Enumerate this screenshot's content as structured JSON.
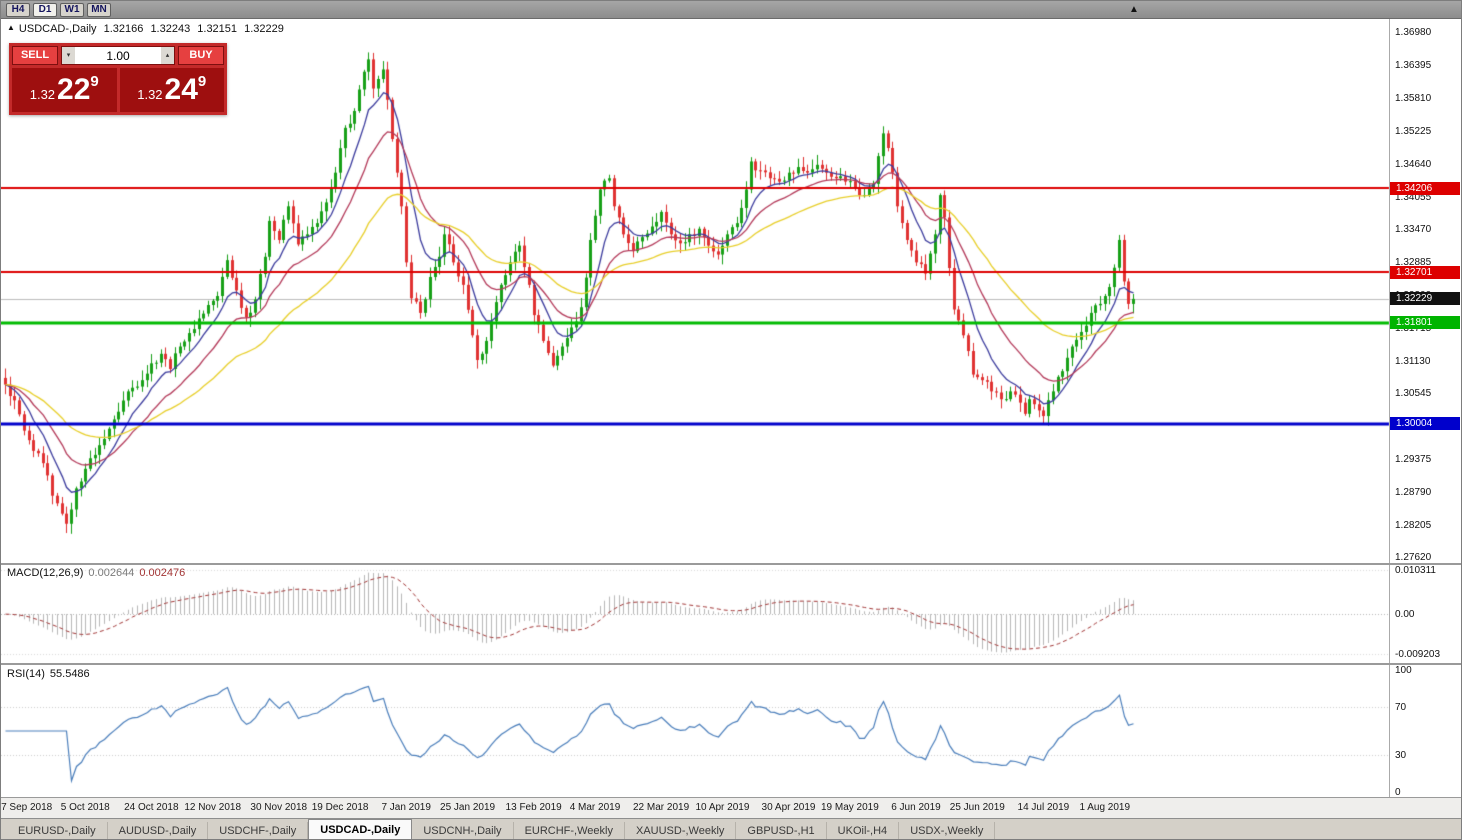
{
  "toolbar": {
    "timeframes": [
      "H4",
      "D1",
      "W1",
      "MN"
    ],
    "active_timeframe": "D1",
    "collapse_icon": "▲"
  },
  "chart_header": {
    "symbol_arrow": "▲",
    "title": "USDCAD-,Daily",
    "open": "1.32166",
    "high": "1.32243",
    "low": "1.32151",
    "close": "1.32229"
  },
  "trade_panel": {
    "sell_label": "SELL",
    "buy_label": "BUY",
    "volume": "1.00",
    "spinner_up": "▴",
    "spinner_down": "▾",
    "sell_price": {
      "prefix": "1.32",
      "big": "22",
      "sup": "9"
    },
    "buy_price": {
      "prefix": "1.32",
      "big": "24",
      "sup": "9"
    }
  },
  "price_axis": {
    "labels": [
      "1.36980",
      "1.36395",
      "1.35810",
      "1.35225",
      "1.34640",
      "1.34055",
      "1.33470",
      "1.32885",
      "1.32300",
      "1.31715",
      "1.31130",
      "1.30545",
      "1.29960",
      "1.29375",
      "1.28790",
      "1.28205",
      "1.27620"
    ],
    "tags": [
      {
        "label": "1.34206",
        "price": 1.34206,
        "color": "#dd0000"
      },
      {
        "label": "1.32701",
        "price": 1.32701,
        "color": "#dd0000"
      },
      {
        "label": "1.32229",
        "price": 1.32229,
        "color": "#111111"
      },
      {
        "label": "1.31801",
        "price": 1.31801,
        "color": "#00b400"
      },
      {
        "label": "1.30004",
        "price": 1.30004,
        "color": "#0000cc"
      }
    ]
  },
  "macd_panel": {
    "label": "MACD(12,26,9)",
    "value_main": "0.002644",
    "value_signal": "0.002476",
    "axis_labels": [
      "0.010311",
      "0.00",
      "-0.009203"
    ]
  },
  "rsi_panel": {
    "label": "RSI(14)",
    "value": "55.5486",
    "axis_labels": [
      "100",
      "70",
      "30",
      "0"
    ],
    "level_lines": [
      70,
      30
    ]
  },
  "date_axis": {
    "labels": [
      "17 Sep 2018",
      "5 Oct 2018",
      "24 Oct 2018",
      "12 Nov 2018",
      "30 Nov 2018",
      "19 Dec 2018",
      "7 Jan 2019",
      "25 Jan 2019",
      "13 Feb 2019",
      "4 Mar 2019",
      "22 Mar 2019",
      "10 Apr 2019",
      "30 Apr 2019",
      "19 May 2019",
      "6 Jun 2019",
      "25 Jun 2019",
      "14 Jul 2019",
      "1 Aug 2019"
    ],
    "bar_indices": [
      4,
      17,
      31,
      44,
      58,
      71,
      85,
      98,
      112,
      125,
      139,
      152,
      166,
      179,
      193,
      206,
      220,
      233
    ]
  },
  "tabs": {
    "active_index": 3,
    "items": [
      "EURUSD-,Daily",
      "AUDUSD-,Daily",
      "USDCHF-,Daily",
      "USDCAD-,Daily",
      "USDCNH-,Daily",
      "EURCHF-,Weekly",
      "XAUUSD-,Weekly",
      "GBPUSD-,H1",
      "UKOil-,H4",
      "USDX-,Weekly"
    ]
  },
  "chart_data": {
    "type": "candlestick",
    "symbol": "USDCAD-",
    "timeframe": "Daily",
    "last_ohlc": {
      "open": 1.32166,
      "high": 1.32243,
      "low": 1.32151,
      "close": 1.32229
    },
    "price_range": {
      "top": 1.3722,
      "bottom": 1.2752
    },
    "bar_count": 240,
    "wiggle": 0.0016,
    "close_anchors": [
      [
        0,
        1.307
      ],
      [
        2,
        1.3042
      ],
      [
        4,
        1.2988
      ],
      [
        6,
        1.2952
      ],
      [
        8,
        1.293
      ],
      [
        10,
        1.2872
      ],
      [
        12,
        1.284
      ],
      [
        13,
        1.2822
      ],
      [
        15,
        1.2885
      ],
      [
        17,
        1.292
      ],
      [
        20,
        1.2962
      ],
      [
        23,
        1.3008
      ],
      [
        26,
        1.3058
      ],
      [
        29,
        1.3078
      ],
      [
        31,
        1.3108
      ],
      [
        33,
        1.3125
      ],
      [
        35,
        1.3098
      ],
      [
        37,
        1.3138
      ],
      [
        39,
        1.3162
      ],
      [
        41,
        1.3188
      ],
      [
        43,
        1.3212
      ],
      [
        45,
        1.3228
      ],
      [
        47,
        1.3292
      ],
      [
        49,
        1.3238
      ],
      [
        51,
        1.319
      ],
      [
        53,
        1.3222
      ],
      [
        55,
        1.3298
      ],
      [
        56,
        1.3362
      ],
      [
        58,
        1.3328
      ],
      [
        60,
        1.3388
      ],
      [
        62,
        1.332
      ],
      [
        64,
        1.3338
      ],
      [
        66,
        1.3358
      ],
      [
        68,
        1.3395
      ],
      [
        70,
        1.3448
      ],
      [
        72,
        1.3528
      ],
      [
        74,
        1.3558
      ],
      [
        76,
        1.3628
      ],
      [
        77,
        1.365
      ],
      [
        78,
        1.3598
      ],
      [
        79,
        1.3615
      ],
      [
        80,
        1.3632
      ],
      [
        81,
        1.3578
      ],
      [
        82,
        1.3508
      ],
      [
        83,
        1.3448
      ],
      [
        84,
        1.3388
      ],
      [
        85,
        1.3288
      ],
      [
        86,
        1.3224
      ],
      [
        88,
        1.3198
      ],
      [
        90,
        1.3262
      ],
      [
        92,
        1.3298
      ],
      [
        93,
        1.3338
      ],
      [
        95,
        1.3288
      ],
      [
        97,
        1.3248
      ],
      [
        99,
        1.3158
      ],
      [
        100,
        1.3114
      ],
      [
        102,
        1.3148
      ],
      [
        103,
        1.3183
      ],
      [
        105,
        1.3248
      ],
      [
        107,
        1.3288
      ],
      [
        109,
        1.3318
      ],
      [
        111,
        1.3248
      ],
      [
        112,
        1.3194
      ],
      [
        114,
        1.3148
      ],
      [
        116,
        1.3104
      ],
      [
        118,
        1.3138
      ],
      [
        120,
        1.3172
      ],
      [
        122,
        1.3208
      ],
      [
        124,
        1.3328
      ],
      [
        126,
        1.3418
      ],
      [
        128,
        1.3438
      ],
      [
        129,
        1.3388
      ],
      [
        131,
        1.3338
      ],
      [
        133,
        1.3308
      ],
      [
        135,
        1.3333
      ],
      [
        137,
        1.3352
      ],
      [
        139,
        1.3378
      ],
      [
        141,
        1.3338
      ],
      [
        143,
        1.3322
      ],
      [
        145,
        1.3338
      ],
      [
        147,
        1.3348
      ],
      [
        149,
        1.3318
      ],
      [
        151,
        1.3302
      ],
      [
        153,
        1.3338
      ],
      [
        155,
        1.3358
      ],
      [
        157,
        1.3418
      ],
      [
        158,
        1.3468
      ],
      [
        160,
        1.3452
      ],
      [
        162,
        1.3438
      ],
      [
        164,
        1.3432
      ],
      [
        166,
        1.3448
      ],
      [
        168,
        1.3458
      ],
      [
        170,
        1.3448
      ],
      [
        172,
        1.3462
      ],
      [
        174,
        1.3448
      ],
      [
        176,
        1.3438
      ],
      [
        178,
        1.3432
      ],
      [
        180,
        1.3422
      ],
      [
        182,
        1.3408
      ],
      [
        184,
        1.3428
      ],
      [
        186,
        1.3518
      ],
      [
        187,
        1.3492
      ],
      [
        188,
        1.3448
      ],
      [
        189,
        1.3388
      ],
      [
        191,
        1.3328
      ],
      [
        193,
        1.3288
      ],
      [
        195,
        1.3268
      ],
      [
        197,
        1.3338
      ],
      [
        198,
        1.3408
      ],
      [
        199,
        1.3368
      ],
      [
        200,
        1.3278
      ],
      [
        201,
        1.3204
      ],
      [
        203,
        1.3158
      ],
      [
        205,
        1.3088
      ],
      [
        207,
        1.3078
      ],
      [
        209,
        1.3058
      ],
      [
        211,
        1.3044
      ],
      [
        213,
        1.3058
      ],
      [
        215,
        1.3038
      ],
      [
        216,
        1.3018
      ],
      [
        217,
        1.3044
      ],
      [
        219,
        1.3024
      ],
      [
        220,
        1.3014
      ],
      [
        222,
        1.3058
      ],
      [
        223,
        1.3084
      ],
      [
        225,
        1.3118
      ],
      [
        226,
        1.3138
      ],
      [
        228,
        1.3164
      ],
      [
        230,
        1.3198
      ],
      [
        232,
        1.3214
      ],
      [
        233,
        1.3228
      ],
      [
        234,
        1.3244
      ],
      [
        236,
        1.3328
      ],
      [
        237,
        1.3254
      ],
      [
        238,
        1.3214
      ],
      [
        239,
        1.32229
      ]
    ],
    "moving_averages": [
      {
        "period": 8,
        "color": "#3c3c9e"
      },
      {
        "period": 18,
        "color": "#b43a5a"
      },
      {
        "period": 40,
        "color": "#e8cf2a"
      }
    ],
    "horizontal_lines": [
      {
        "price": 1.34206,
        "color": "#dd0000",
        "width": 2
      },
      {
        "price": 1.32701,
        "color": "#dd0000",
        "width": 2
      },
      {
        "price": 1.31801,
        "color": "#00bb00",
        "width": 3
      },
      {
        "price": 1.30004,
        "color": "#0000cc",
        "width": 3
      }
    ],
    "current_price_line": {
      "price": 1.32229,
      "color": "#bbbbbb"
    },
    "macd": {
      "fast": 12,
      "slow": 26,
      "signal": 9,
      "scale_max": 0.0116,
      "scale_min": -0.0113,
      "histogram_color": "#b8b8b8",
      "signal_color": "#a23535"
    },
    "rsi": {
      "period": 14,
      "color": "#4a7ebb"
    },
    "candle_up_color": "#18a018",
    "candle_down_color": "#e03232"
  }
}
